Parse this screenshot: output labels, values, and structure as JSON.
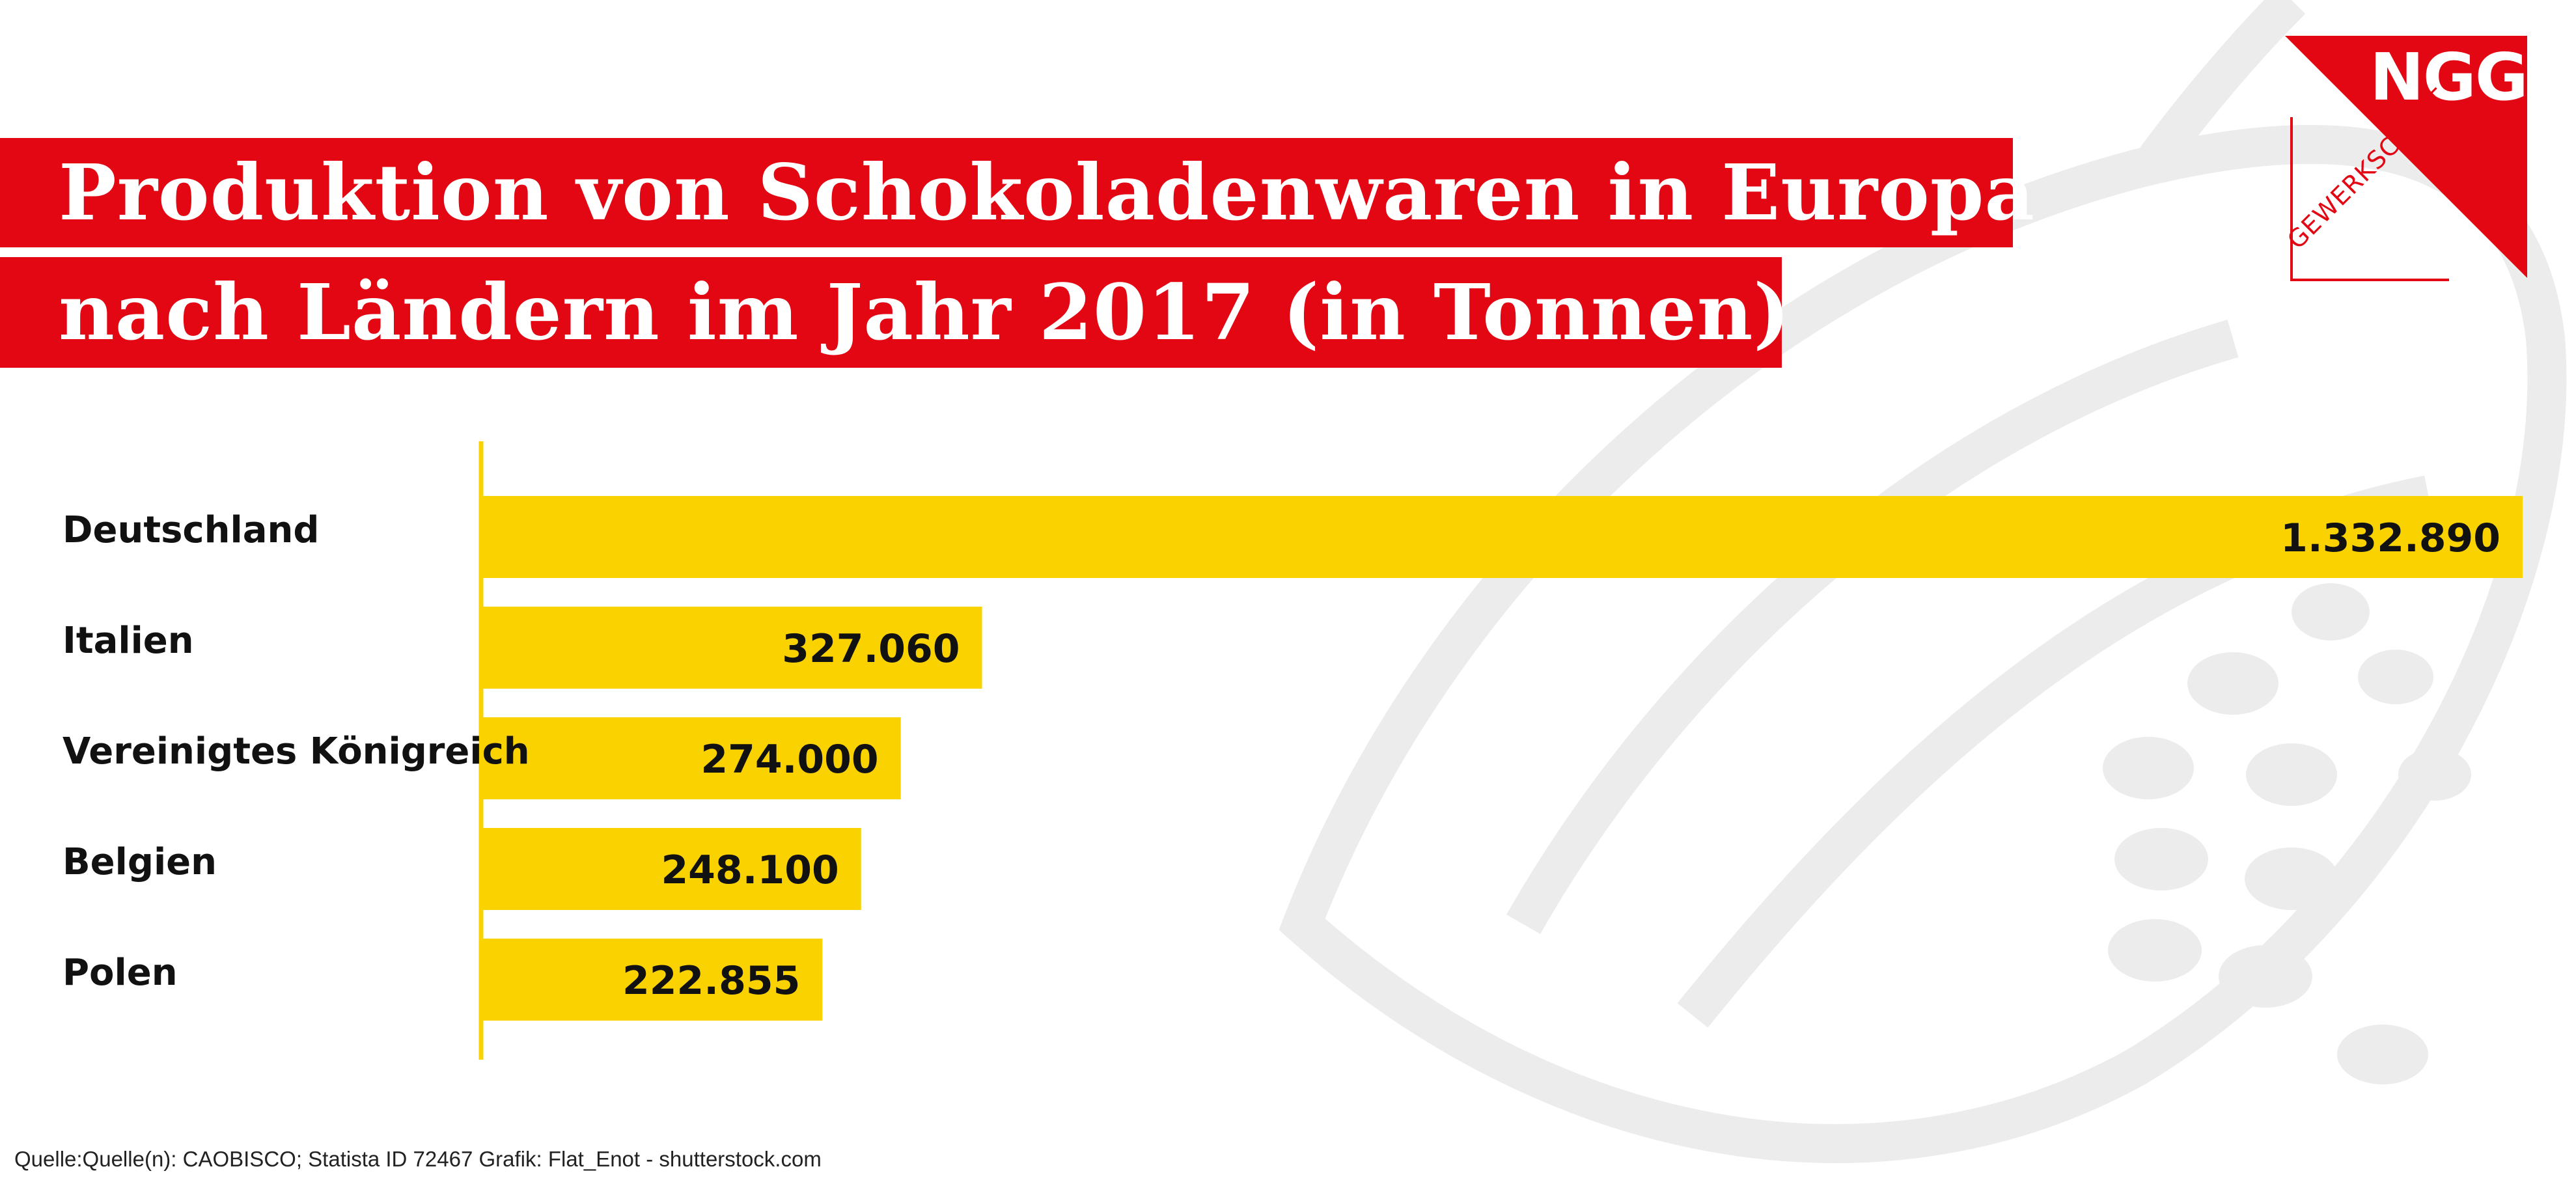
{
  "title": {
    "line1": "Produktion von Schokoladenwaren in Europa",
    "line2": "nach Ländern im Jahr 2017 (in Tonnen)"
  },
  "logo": {
    "text": "NGG",
    "subtext": "GEWERKSCHAFT"
  },
  "colors": {
    "title_band": "#e30613",
    "bar": "#f9d200",
    "axis": "#f9d200",
    "watermark": "#ececec"
  },
  "chart_data": {
    "type": "bar",
    "orientation": "horizontal",
    "categories": [
      "Deutschland",
      "Italien",
      "Vereinigtes Königreich",
      "Belgien",
      "Polen"
    ],
    "values": [
      1332890,
      327060,
      274000,
      248100,
      222855
    ],
    "value_labels": [
      "1.332.890",
      "327.060",
      "274.000",
      "248.100",
      "222.855"
    ],
    "xlim": [
      0,
      1332890
    ],
    "grid": false,
    "legend": "none"
  },
  "source": "Quelle:Quelle(n): CAOBISCO; Statista ID 72467 Grafik: Flat_Enot - shutterstock.com"
}
